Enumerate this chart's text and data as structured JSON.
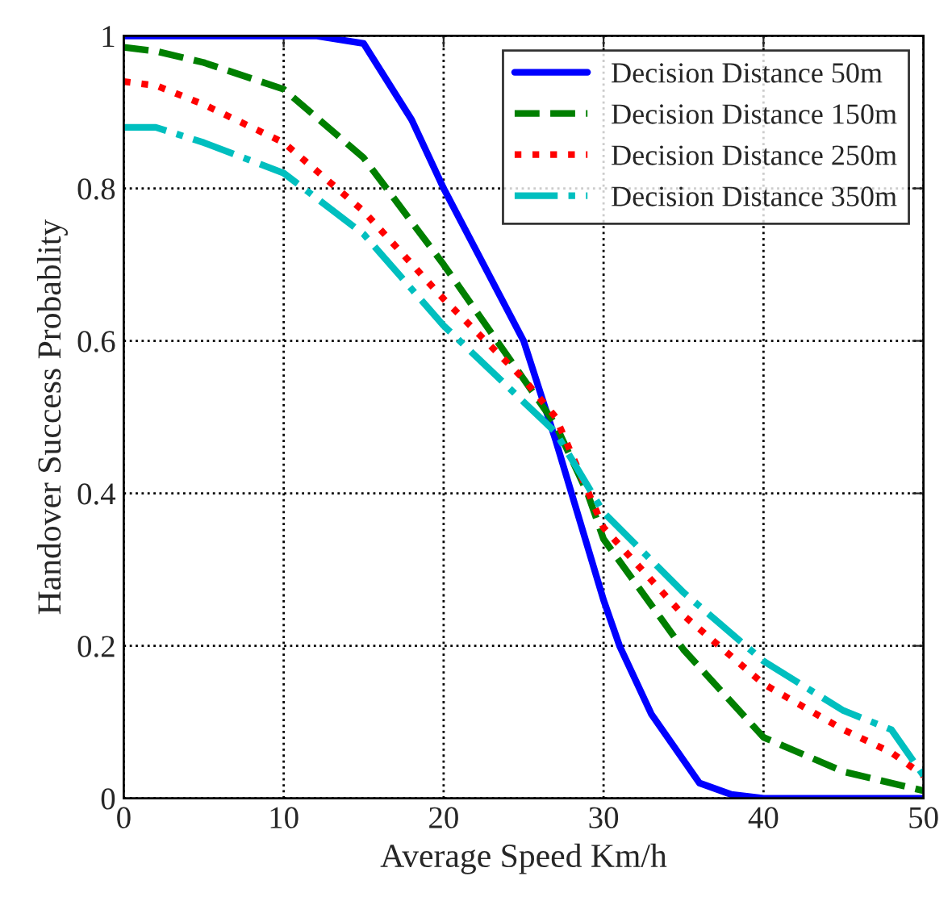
{
  "chart_data": {
    "type": "line",
    "xlabel": "Average Speed Km/h",
    "ylabel": "Handover Success Probablity",
    "xlim": [
      0,
      50
    ],
    "ylim": [
      0,
      1
    ],
    "xticks": [
      0,
      10,
      20,
      30,
      40,
      50
    ],
    "yticks": [
      0,
      0.2,
      0.4,
      0.6,
      0.8,
      1
    ],
    "grid": true,
    "legend": "top right",
    "marker": "none",
    "series": [
      {
        "name": "Decision Distance 50m",
        "color": "#0000ff",
        "line_style": "solid",
        "x": [
          0,
          5,
          10,
          12,
          15,
          18,
          20,
          22,
          25,
          27,
          28,
          30,
          31,
          33,
          36,
          38,
          40,
          45,
          50
        ],
        "values": [
          1,
          1,
          1,
          1,
          0.99,
          0.89,
          0.8,
          0.72,
          0.6,
          0.47,
          0.4,
          0.26,
          0.2,
          0.11,
          0.02,
          0.005,
          0,
          0,
          0
        ]
      },
      {
        "name": "Decision Distance 150m",
        "color": "#007f00",
        "line_style": "dashed",
        "x": [
          0,
          2,
          5,
          10,
          15,
          20,
          22,
          25,
          27,
          29,
          30,
          35,
          40,
          45,
          50
        ],
        "values": [
          0.985,
          0.98,
          0.965,
          0.93,
          0.84,
          0.7,
          0.64,
          0.55,
          0.49,
          0.4,
          0.34,
          0.195,
          0.08,
          0.035,
          0.01
        ]
      },
      {
        "name": "Decision Distance 250m",
        "color": "#ff0000",
        "line_style": "dotted",
        "x": [
          0,
          2,
          5,
          10,
          15,
          20,
          25,
          27,
          30,
          35,
          40,
          45,
          48,
          50
        ],
        "values": [
          0.94,
          0.935,
          0.91,
          0.86,
          0.77,
          0.655,
          0.55,
          0.5,
          0.355,
          0.24,
          0.15,
          0.09,
          0.06,
          0.03
        ]
      },
      {
        "name": "Decision Distance 350m",
        "color": "#00bfbf",
        "line_style": "dashdot",
        "x": [
          0,
          2,
          5,
          10,
          15,
          20,
          25,
          27,
          30,
          35,
          40,
          45,
          48,
          50
        ],
        "values": [
          0.88,
          0.88,
          0.86,
          0.82,
          0.74,
          0.62,
          0.52,
          0.48,
          0.375,
          0.27,
          0.18,
          0.115,
          0.09,
          0.03
        ]
      }
    ]
  }
}
